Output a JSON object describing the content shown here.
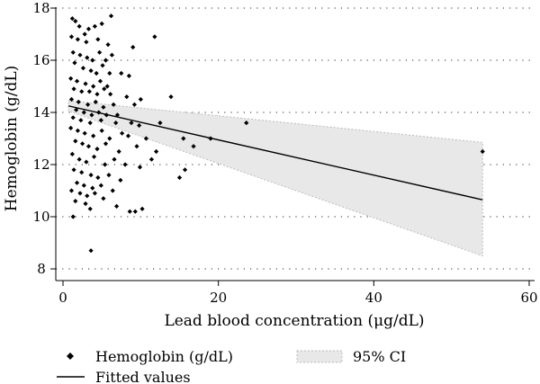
{
  "chart_data": {
    "type": "scatter",
    "title": "",
    "xlabel": "Lead blood concentration (μg/dL)",
    "ylabel": "Hemoglobin (g/dL)",
    "xlim": [
      0,
      60
    ],
    "ylim": [
      8,
      18
    ],
    "xticks": [
      0,
      20,
      40,
      60
    ],
    "yticks": [
      8,
      10,
      12,
      14,
      16,
      18
    ],
    "grid": "horizontal dotted",
    "legend_position": "bottom",
    "series": [
      {
        "name": "Hemoglobin (g/dL)",
        "kind": "scatter",
        "marker": "diamond",
        "color": "#000000",
        "points": [
          [
            1.2,
            17.6
          ],
          [
            1.6,
            17.5
          ],
          [
            2.1,
            17.3
          ],
          [
            2.8,
            17.0
          ],
          [
            3.3,
            17.2
          ],
          [
            4.1,
            17.3
          ],
          [
            5.0,
            17.4
          ],
          [
            6.2,
            17.7
          ],
          [
            1.1,
            16.9
          ],
          [
            1.9,
            16.8
          ],
          [
            3.0,
            16.7
          ],
          [
            4.5,
            16.8
          ],
          [
            5.8,
            16.6
          ],
          [
            9.0,
            16.5
          ],
          [
            11.8,
            16.9
          ],
          [
            1.3,
            16.3
          ],
          [
            2.2,
            16.2
          ],
          [
            3.1,
            16.1
          ],
          [
            3.8,
            16.0
          ],
          [
            4.7,
            16.3
          ],
          [
            5.5,
            16.0
          ],
          [
            6.3,
            16.2
          ],
          [
            1.5,
            15.9
          ],
          [
            2.6,
            15.7
          ],
          [
            3.6,
            15.6
          ],
          [
            4.3,
            15.5
          ],
          [
            5.1,
            15.8
          ],
          [
            6.0,
            15.5
          ],
          [
            7.5,
            15.5
          ],
          [
            8.5,
            15.4
          ],
          [
            1.0,
            15.3
          ],
          [
            1.8,
            15.2
          ],
          [
            2.9,
            15.1
          ],
          [
            3.9,
            15.0
          ],
          [
            4.8,
            15.2
          ],
          [
            5.7,
            15.0
          ],
          [
            1.4,
            14.9
          ],
          [
            2.4,
            14.8
          ],
          [
            3.4,
            14.8
          ],
          [
            4.4,
            14.7
          ],
          [
            5.3,
            14.9
          ],
          [
            6.1,
            14.7
          ],
          [
            8.2,
            14.6
          ],
          [
            10.0,
            14.5
          ],
          [
            13.9,
            14.6
          ],
          [
            1.1,
            14.5
          ],
          [
            2.0,
            14.4
          ],
          [
            3.2,
            14.3
          ],
          [
            4.2,
            14.4
          ],
          [
            5.2,
            14.2
          ],
          [
            6.5,
            14.3
          ],
          [
            9.2,
            14.3
          ],
          [
            1.7,
            14.1
          ],
          [
            2.7,
            14.0
          ],
          [
            3.7,
            13.9
          ],
          [
            4.6,
            14.0
          ],
          [
            5.6,
            13.9
          ],
          [
            7.0,
            13.9
          ],
          [
            1.3,
            13.8
          ],
          [
            2.3,
            13.7
          ],
          [
            3.5,
            13.6
          ],
          [
            4.9,
            13.7
          ],
          [
            6.8,
            13.6
          ],
          [
            8.8,
            13.6
          ],
          [
            9.8,
            13.5
          ],
          [
            12.5,
            13.6
          ],
          [
            23.6,
            13.6
          ],
          [
            1.0,
            13.4
          ],
          [
            1.9,
            13.3
          ],
          [
            2.8,
            13.2
          ],
          [
            3.9,
            13.1
          ],
          [
            5.0,
            13.3
          ],
          [
            6.0,
            13.0
          ],
          [
            7.6,
            13.2
          ],
          [
            8.4,
            13.1
          ],
          [
            10.7,
            13.0
          ],
          [
            15.5,
            13.0
          ],
          [
            19.0,
            13.0
          ],
          [
            1.6,
            12.9
          ],
          [
            2.5,
            12.8
          ],
          [
            3.3,
            12.7
          ],
          [
            4.4,
            12.6
          ],
          [
            5.5,
            12.8
          ],
          [
            7.2,
            12.5
          ],
          [
            9.5,
            12.7
          ],
          [
            12.0,
            12.5
          ],
          [
            16.8,
            12.7
          ],
          [
            1.2,
            12.4
          ],
          [
            2.1,
            12.2
          ],
          [
            3.0,
            12.1
          ],
          [
            4.0,
            12.3
          ],
          [
            5.4,
            12.0
          ],
          [
            6.6,
            12.2
          ],
          [
            8.0,
            12.0
          ],
          [
            9.9,
            11.9
          ],
          [
            11.4,
            12.2
          ],
          [
            1.4,
            11.8
          ],
          [
            2.4,
            11.7
          ],
          [
            3.6,
            11.6
          ],
          [
            4.5,
            11.5
          ],
          [
            5.9,
            11.6
          ],
          [
            7.4,
            11.4
          ],
          [
            15.7,
            11.8
          ],
          [
            1.8,
            11.3
          ],
          [
            2.7,
            11.2
          ],
          [
            3.8,
            11.1
          ],
          [
            4.9,
            11.2
          ],
          [
            6.4,
            11.0
          ],
          [
            15.0,
            11.5
          ],
          [
            1.1,
            11.0
          ],
          [
            2.2,
            10.9
          ],
          [
            3.1,
            10.8
          ],
          [
            4.1,
            10.9
          ],
          [
            5.2,
            10.7
          ],
          [
            1.6,
            10.6
          ],
          [
            2.9,
            10.5
          ],
          [
            3.5,
            10.3
          ],
          [
            6.9,
            10.4
          ],
          [
            8.6,
            10.2
          ],
          [
            10.2,
            10.3
          ],
          [
            9.3,
            10.2
          ],
          [
            1.3,
            10.0
          ],
          [
            3.6,
            8.7
          ],
          [
            54.0,
            12.5
          ]
        ]
      },
      {
        "name": "Fitted values",
        "kind": "line",
        "color": "#000000",
        "points": [
          [
            0.7,
            14.25
          ],
          [
            54.0,
            10.65
          ]
        ]
      },
      {
        "name": "95% CI",
        "kind": "band",
        "color": "#e8e8e8",
        "x": [
          0.7,
          54.0
        ],
        "lower": [
          14.05,
          8.5
        ],
        "upper": [
          14.45,
          12.85
        ]
      }
    ]
  }
}
